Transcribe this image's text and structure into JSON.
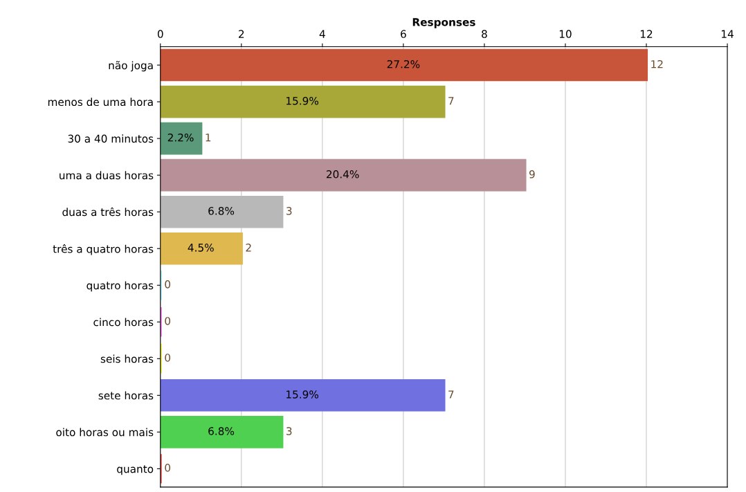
{
  "chart_data": {
    "type": "bar",
    "orientation": "horizontal",
    "xlabel": "Responses",
    "categories": [
      "não joga",
      "menos de uma hora",
      "30 a 40 minutos",
      "uma a duas horas",
      "duas a três horas",
      "três a quatro horas",
      "quatro horas",
      "cinco horas",
      "seis horas",
      "sete horas",
      "oito horas ou mais",
      "quanto"
    ],
    "values": [
      12,
      7,
      1,
      9,
      3,
      2,
      0,
      0,
      0,
      7,
      3,
      0
    ],
    "colors": [
      "#c8553a",
      "#a8a838",
      "#5a9a7a",
      "#b89098",
      "#b8b8b8",
      "#e0b850",
      "#a8eef8",
      "#f080f0",
      "#f0f040",
      "#7070e0",
      "#50d050",
      "#f06060"
    ],
    "xlim": [
      0,
      14
    ],
    "xticks": [
      0,
      2,
      4,
      6,
      8,
      10,
      12,
      14
    ],
    "grid": "x",
    "data_labels": true,
    "annotations": [
      {
        "text": "27.2%",
        "x": 6,
        "y": "não joga"
      },
      {
        "text": "15.9%",
        "x": 3.5,
        "y": "menos de uma hora"
      },
      {
        "text": "2.2%",
        "x": 0.5,
        "y": "30 a 40 minutos"
      },
      {
        "text": "20.4%",
        "x": 4.5,
        "y": "uma a duas horas"
      },
      {
        "text": "6.8%",
        "x": 1.5,
        "y": "duas a três horas"
      },
      {
        "text": "4.5%",
        "x": 1,
        "y": "três a quatro horas"
      },
      {
        "text": "15.9%",
        "x": 3.5,
        "y": "sete horas"
      },
      {
        "text": "6.8%",
        "x": 1.5,
        "y": "oito horas ou mais"
      }
    ]
  }
}
